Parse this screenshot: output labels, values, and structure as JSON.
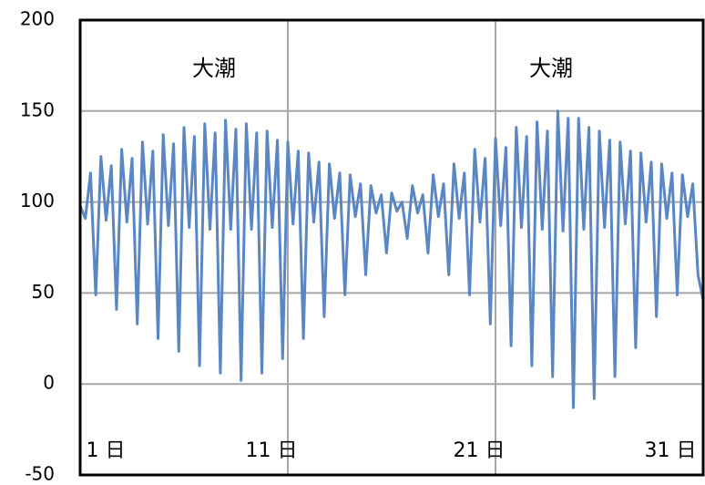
{
  "chart_data": {
    "type": "line",
    "annotations": [
      "大潮",
      "大潮"
    ],
    "x": [
      1,
      1.25,
      1.5,
      1.75,
      2,
      2.25,
      2.5,
      2.75,
      3,
      3.25,
      3.5,
      3.75,
      4,
      4.25,
      4.5,
      4.75,
      5,
      5.25,
      5.5,
      5.75,
      6,
      6.25,
      6.5,
      6.75,
      7,
      7.25,
      7.5,
      7.75,
      8,
      8.25,
      8.5,
      8.75,
      9,
      9.25,
      9.5,
      9.75,
      10,
      10.25,
      10.5,
      10.75,
      11,
      11.25,
      11.5,
      11.75,
      12,
      12.25,
      12.5,
      12.75,
      13,
      13.25,
      13.5,
      13.75,
      14,
      14.25,
      14.5,
      14.75,
      15,
      15.25,
      15.5,
      15.75,
      16,
      16.25,
      16.5,
      16.75,
      17,
      17.25,
      17.5,
      17.75,
      18,
      18.25,
      18.5,
      18.75,
      19,
      19.25,
      19.5,
      19.75,
      20,
      20.25,
      20.5,
      20.75,
      21,
      21.25,
      21.5,
      21.75,
      22,
      22.25,
      22.5,
      22.75,
      23,
      23.25,
      23.5,
      23.75,
      24,
      24.25,
      24.5,
      24.75,
      25,
      25.25,
      25.5,
      25.75,
      26,
      26.25,
      26.5,
      26.75,
      27,
      27.25,
      27.5,
      27.75,
      28,
      28.25,
      28.5,
      28.75,
      29,
      29.25,
      29.5,
      29.75,
      30,
      30.25,
      30.5,
      30.75,
      31
    ],
    "series": [
      {
        "color": "#5a87c4",
        "values": [
          98,
          91,
          116,
          49,
          125,
          90,
          120,
          41,
          129,
          89,
          124,
          33,
          133,
          88,
          128,
          25,
          137,
          87,
          132,
          18,
          141,
          86,
          136,
          10,
          143,
          85,
          138,
          6,
          145,
          85,
          140,
          2,
          143,
          85,
          138,
          6,
          139,
          86,
          134,
          14,
          133,
          88,
          128,
          25,
          127,
          89,
          122,
          37,
          121,
          91,
          116,
          49,
          115,
          92,
          110,
          60,
          109,
          94,
          104,
          72,
          105,
          95,
          100,
          80,
          109,
          94,
          104,
          72,
          115,
          92,
          110,
          60,
          121,
          91,
          116,
          49,
          129,
          89,
          124,
          33,
          135,
          87,
          130,
          21,
          141,
          86,
          136,
          10,
          144,
          85,
          139,
          4,
          150,
          84,
          146,
          -13,
          146,
          85,
          141,
          -8,
          139,
          86,
          134,
          4,
          133,
          88,
          128,
          20,
          127,
          89,
          122,
          37,
          121,
          91,
          116,
          49,
          115,
          92,
          110,
          60,
          46
        ]
      }
    ],
    "xlim": [
      1,
      31
    ],
    "xticks": [
      {
        "value": 1,
        "label": "1 日"
      },
      {
        "value": 11,
        "label": "11 日"
      },
      {
        "value": 21,
        "label": "21 日"
      },
      {
        "value": 31,
        "label": "31 日"
      }
    ],
    "ylim": [
      -50,
      200
    ],
    "yticks": [
      -50,
      0,
      50,
      100,
      150,
      200
    ],
    "grid": true
  }
}
